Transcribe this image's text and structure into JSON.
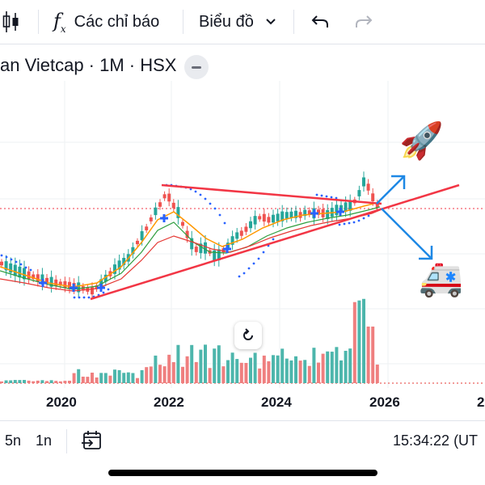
{
  "toolbar": {
    "indicators_label": "Các chỉ báo",
    "chart_type_label": "Biểu đồ"
  },
  "symbol": {
    "title": "an Vietcap · 1M · HSX"
  },
  "chart_data": {
    "type": "candlestick",
    "title": "an Vietcap · 1M · HSX",
    "x_tick_labels": [
      "2020",
      "2022",
      "2024",
      "2026",
      "2"
    ],
    "price_line": "dashed red horizontal line at current price",
    "annotations": [
      "rising red trendline",
      "falling red trendline from 2022 peak",
      "blue arrow up toward rocket",
      "blue arrow down toward ambulance"
    ],
    "emoji_annotations": [
      "🚀",
      "🚑"
    ]
  },
  "bottom_bar": {
    "range_5n": "5n",
    "range_1n": "1n",
    "clock": "15:34:22 (UT"
  }
}
